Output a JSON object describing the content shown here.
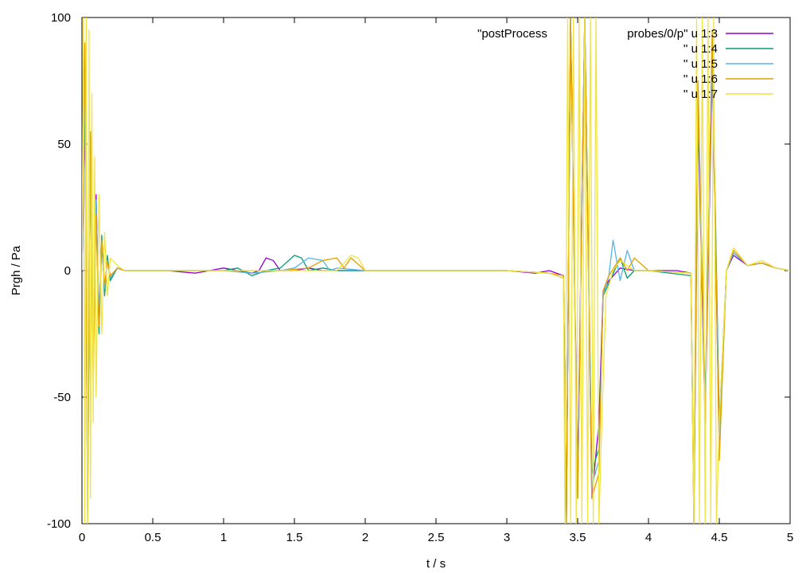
{
  "chart_data": {
    "type": "line",
    "title": "",
    "xlabel": "t / s",
    "ylabel": "Prgh / Pa",
    "xlim": [
      0,
      5
    ],
    "ylim": [
      -100,
      100
    ],
    "xticks": [
      "0",
      "0.5",
      "1",
      "1.5",
      "2",
      "2.5",
      "3",
      "3.5",
      "4",
      "4.5",
      "5"
    ],
    "yticks": [
      "100",
      "50",
      "0",
      "-50",
      "-100"
    ],
    "grid": false,
    "legend_position": "top-right",
    "series": [
      {
        "name": "\"postProcess",
        "name_tail": "probes/0/p\" u 1:3",
        "color": "#9400d3",
        "x": [
          0,
          0.02,
          0.04,
          0.06,
          0.08,
          0.1,
          0.12,
          0.14,
          0.16,
          0.18,
          0.2,
          0.25,
          0.3,
          0.4,
          0.6,
          0.8,
          0.9,
          1.0,
          1.1,
          1.2,
          1.25,
          1.3,
          1.35,
          1.4,
          1.5,
          1.6,
          1.7,
          1.8,
          2.0,
          2.5,
          3.0,
          3.2,
          3.3,
          3.4,
          3.42,
          3.45,
          3.5,
          3.55,
          3.6,
          3.65,
          3.68,
          3.72,
          3.8,
          3.9,
          4.0,
          4.2,
          4.3,
          4.32,
          4.35,
          4.4,
          4.45,
          4.5,
          4.55,
          4.6,
          4.7,
          4.8,
          4.9,
          5.0
        ],
        "y": [
          0,
          60,
          -80,
          40,
          -30,
          30,
          -20,
          12,
          -8,
          5,
          -3,
          1,
          0,
          0,
          0,
          -1,
          0,
          1,
          0,
          -1,
          0,
          5,
          4,
          0,
          0,
          1,
          0,
          0,
          0,
          0,
          0,
          -1,
          0,
          -2,
          -100,
          100,
          -80,
          100,
          -90,
          -60,
          -8,
          -4,
          1,
          0,
          0,
          0,
          -1,
          -100,
          60,
          -60,
          80,
          -70,
          0,
          6,
          2,
          3,
          1,
          0
        ]
      },
      {
        "name": "'' u 1:4",
        "color": "#009e73",
        "x": [
          0,
          0.02,
          0.04,
          0.06,
          0.08,
          0.1,
          0.12,
          0.14,
          0.16,
          0.18,
          0.2,
          0.25,
          0.3,
          0.4,
          0.6,
          0.8,
          1.0,
          1.1,
          1.2,
          1.3,
          1.4,
          1.5,
          1.55,
          1.6,
          1.7,
          1.8,
          2.0,
          2.5,
          3.0,
          3.3,
          3.4,
          3.42,
          3.45,
          3.5,
          3.55,
          3.6,
          3.65,
          3.68,
          3.72,
          3.8,
          3.85,
          3.9,
          4.0,
          4.3,
          4.32,
          4.35,
          4.4,
          4.45,
          4.5,
          4.55,
          4.6,
          4.7,
          4.8,
          4.9,
          5.0
        ],
        "y": [
          0,
          70,
          -90,
          50,
          -35,
          25,
          -25,
          14,
          -10,
          6,
          -4,
          1,
          0,
          0,
          0,
          0,
          0,
          1,
          -2,
          0,
          1,
          6,
          5,
          0,
          1,
          0,
          0,
          0,
          0,
          -1,
          -3,
          -100,
          100,
          -90,
          100,
          -80,
          -70,
          -10,
          -5,
          5,
          -3,
          0,
          0,
          -2,
          -95,
          70,
          -50,
          90,
          -60,
          0,
          7,
          2,
          3,
          1,
          0
        ]
      },
      {
        "name": "'' u 1:5",
        "color": "#56b4e9",
        "x": [
          0,
          0.02,
          0.04,
          0.06,
          0.08,
          0.1,
          0.12,
          0.14,
          0.16,
          0.18,
          0.2,
          0.25,
          0.3,
          0.4,
          0.6,
          0.8,
          1.0,
          1.2,
          1.4,
          1.5,
          1.6,
          1.7,
          1.75,
          1.8,
          2.0,
          2.5,
          3.0,
          3.3,
          3.4,
          3.42,
          3.45,
          3.5,
          3.55,
          3.6,
          3.65,
          3.68,
          3.72,
          3.75,
          3.8,
          3.85,
          3.9,
          4.0,
          4.3,
          4.32,
          4.35,
          4.4,
          4.45,
          4.5,
          4.55,
          4.6,
          4.7,
          4.8,
          4.9,
          5.0
        ],
        "y": [
          0,
          80,
          -95,
          45,
          -40,
          28,
          -18,
          10,
          -7,
          4,
          -3,
          1,
          0,
          0,
          0,
          0,
          0,
          -1,
          0,
          1,
          5,
          4,
          0,
          1,
          0,
          0,
          0,
          -1,
          -3,
          -100,
          100,
          -85,
          100,
          -85,
          -75,
          -10,
          -2,
          12,
          -4,
          8,
          0,
          0,
          -1,
          -90,
          65,
          -55,
          85,
          -65,
          0,
          7,
          2,
          3,
          1,
          0
        ]
      },
      {
        "name": "'' u 1:6",
        "color": "#e69f00",
        "x": [
          0,
          0.02,
          0.04,
          0.06,
          0.08,
          0.1,
          0.12,
          0.14,
          0.16,
          0.18,
          0.2,
          0.25,
          0.3,
          0.4,
          0.6,
          0.8,
          1.0,
          1.2,
          1.4,
          1.6,
          1.7,
          1.8,
          1.85,
          1.9,
          2.0,
          2.5,
          3.0,
          3.3,
          3.4,
          3.42,
          3.45,
          3.5,
          3.55,
          3.6,
          3.65,
          3.68,
          3.72,
          3.8,
          3.85,
          3.9,
          4.0,
          4.3,
          4.32,
          4.35,
          4.4,
          4.45,
          4.5,
          4.55,
          4.6,
          4.7,
          4.8,
          4.9,
          5.0
        ],
        "y": [
          0,
          90,
          -100,
          55,
          -45,
          22,
          -22,
          12,
          -6,
          4,
          -2,
          1,
          0,
          0,
          0,
          0,
          0,
          0,
          0,
          1,
          4,
          5,
          1,
          5,
          0,
          0,
          0,
          -1,
          -2,
          -100,
          100,
          -90,
          100,
          -90,
          -80,
          -8,
          -2,
          5,
          0,
          5,
          0,
          -1,
          -100,
          75,
          -60,
          95,
          -75,
          0,
          8,
          2,
          3,
          1,
          0
        ]
      },
      {
        "name": "'' u 1:7",
        "color": "#f0e442",
        "x": [
          0,
          0.01,
          0.02,
          0.03,
          0.04,
          0.05,
          0.06,
          0.07,
          0.08,
          0.09,
          0.1,
          0.12,
          0.14,
          0.16,
          0.18,
          0.2,
          0.25,
          0.3,
          0.4,
          0.6,
          0.8,
          1.0,
          1.2,
          1.4,
          1.6,
          1.8,
          1.9,
          1.95,
          2.0,
          2.5,
          3.0,
          3.3,
          3.4,
          3.41,
          3.43,
          3.45,
          3.47,
          3.49,
          3.51,
          3.53,
          3.55,
          3.57,
          3.59,
          3.61,
          3.63,
          3.65,
          3.67,
          3.7,
          3.75,
          3.8,
          3.9,
          4.0,
          4.3,
          4.32,
          4.34,
          4.36,
          4.38,
          4.4,
          4.42,
          4.44,
          4.46,
          4.48,
          4.5,
          4.55,
          4.6,
          4.7,
          4.8,
          4.9,
          5.0
        ],
        "y": [
          0,
          100,
          -100,
          100,
          -100,
          95,
          -90,
          70,
          -60,
          45,
          -50,
          30,
          -25,
          15,
          -10,
          5,
          2,
          0,
          0,
          0,
          0,
          0,
          0,
          0,
          0,
          0,
          6,
          5,
          0,
          0,
          0,
          -1,
          -3,
          -100,
          100,
          -100,
          100,
          -100,
          100,
          -100,
          100,
          -100,
          100,
          -100,
          100,
          -100,
          -60,
          -10,
          0,
          4,
          0,
          0,
          -1,
          -100,
          100,
          -100,
          100,
          -100,
          100,
          -100,
          100,
          -100,
          -60,
          0,
          9,
          2,
          4,
          1,
          0
        ]
      }
    ]
  }
}
